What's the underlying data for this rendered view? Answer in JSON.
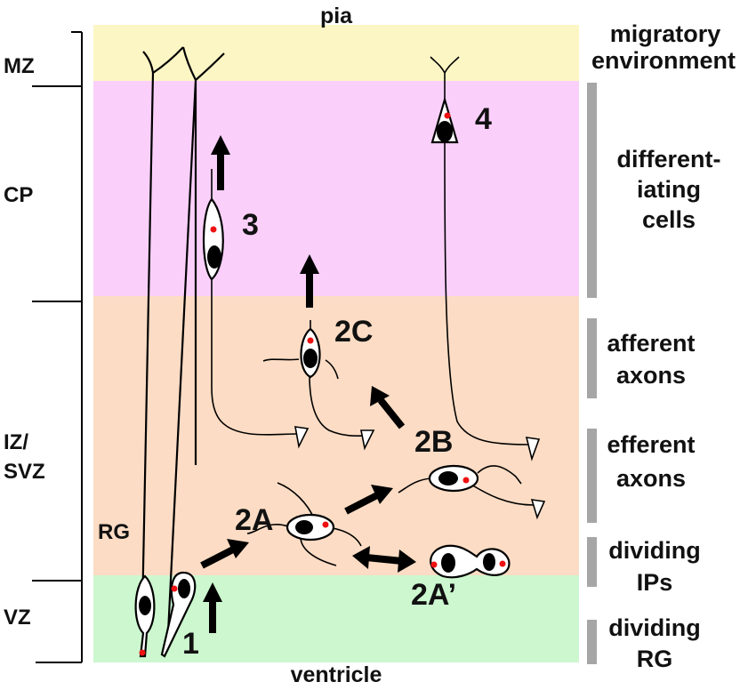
{
  "colors": {
    "mz": "#fcf6c4",
    "cp": "#fad0fa",
    "iz_svz": "#fcdcc4",
    "vz": "#ccf7cf",
    "bar": "#a6a6a6",
    "centrosome": "#ee1111"
  },
  "edges": {
    "top": "pia",
    "bottom": "ventricle"
  },
  "zones": [
    "MZ",
    "CP",
    "IZ/",
    "SVZ",
    "VZ"
  ],
  "right_labels": {
    "migratory": [
      "migratory",
      "environment"
    ],
    "differentiating": [
      "different-",
      "iating",
      "cells"
    ],
    "afferent": [
      "afferent",
      "axons"
    ],
    "efferent": [
      "efferent",
      "axons"
    ],
    "dividing_ips": [
      "dividing",
      "IPs"
    ],
    "dividing_rg": [
      "dividing",
      "RG"
    ]
  },
  "stages": {
    "s1": "1",
    "s2a": "2A",
    "s2a_prime": "2A’",
    "s2b": "2B",
    "s2c": "2C",
    "s3": "3",
    "s4": "4",
    "rg": "RG"
  }
}
